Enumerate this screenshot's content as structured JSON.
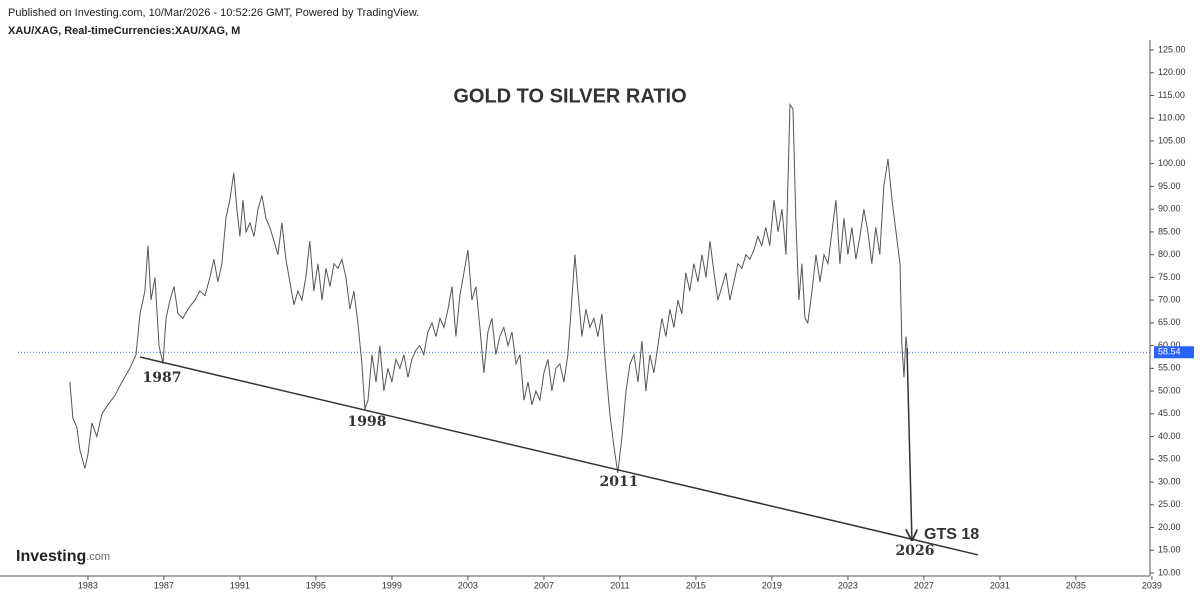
{
  "header": {
    "published": "Published on Investing.com, 10/Mar/2026 - 10:52:26 GMT, Powered by TradingView.",
    "symbol": "XAU/XAG, Real-timeCurrencies:XAU/XAG, M"
  },
  "logo": {
    "name": "Investing",
    "suffix": ".com"
  },
  "chart_data": {
    "type": "line",
    "title": "GOLD TO SILVER RATIO",
    "annotations": [
      "1987",
      "1998",
      "2011",
      "2026",
      "GTS 18"
    ],
    "trendline": {
      "x": [
        1985.74,
        2029.84
      ],
      "values": [
        57.5,
        14
      ]
    },
    "arrow": {
      "x": [
        2026.11,
        2026.37
      ],
      "values": [
        59.5,
        17.3
      ]
    },
    "last_value": 58.54,
    "series": [
      {
        "color": "#555555",
        "x": [
          1982.05,
          1982.21,
          1982.42,
          1982.58,
          1982.84,
          1983.0,
          1983.21,
          1983.47,
          1983.74,
          1984.05,
          1984.42,
          1984.79,
          1985.21,
          1985.53,
          1985.74,
          1986.0,
          1986.16,
          1986.32,
          1986.53,
          1986.74,
          1986.95,
          1987.11,
          1987.32,
          1987.53,
          1987.74,
          1988.0,
          1988.26,
          1988.63,
          1988.89,
          1989.16,
          1989.42,
          1989.63,
          1989.84,
          1990.05,
          1990.26,
          1990.47,
          1990.68,
          1990.84,
          1991.0,
          1991.16,
          1991.32,
          1991.53,
          1991.74,
          1991.95,
          1992.16,
          1992.37,
          1992.58,
          1992.79,
          1993.0,
          1993.21,
          1993.42,
          1993.63,
          1993.84,
          1994.05,
          1994.26,
          1994.47,
          1994.68,
          1994.89,
          1995.11,
          1995.32,
          1995.53,
          1995.74,
          1995.95,
          1996.16,
          1996.37,
          1996.58,
          1996.79,
          1997.0,
          1997.21,
          1997.42,
          1997.58,
          1997.74,
          1997.95,
          1998.16,
          1998.37,
          1998.58,
          1998.79,
          1999.0,
          1999.21,
          1999.42,
          1999.63,
          1999.84,
          2000.05,
          2000.26,
          2000.47,
          2000.68,
          2000.89,
          2001.11,
          2001.32,
          2001.53,
          2001.74,
          2001.95,
          2002.16,
          2002.37,
          2002.58,
          2002.79,
          2003.0,
          2003.21,
          2003.42,
          2003.63,
          2003.84,
          2004.05,
          2004.26,
          2004.47,
          2004.68,
          2004.89,
          2005.11,
          2005.32,
          2005.53,
          2005.74,
          2005.95,
          2006.16,
          2006.37,
          2006.58,
          2006.79,
          2007.0,
          2007.21,
          2007.42,
          2007.63,
          2007.84,
          2008.05,
          2008.26,
          2008.47,
          2008.63,
          2008.79,
          2009.0,
          2009.21,
          2009.42,
          2009.63,
          2009.84,
          2010.05,
          2010.26,
          2010.47,
          2010.68,
          2010.89,
          2011.11,
          2011.32,
          2011.53,
          2011.74,
          2011.95,
          2012.16,
          2012.37,
          2012.58,
          2012.79,
          2013.0,
          2013.21,
          2013.42,
          2013.63,
          2013.84,
          2014.05,
          2014.26,
          2014.47,
          2014.68,
          2014.89,
          2015.11,
          2015.32,
          2015.53,
          2015.74,
          2015.95,
          2016.16,
          2016.37,
          2016.58,
          2016.79,
          2017.0,
          2017.21,
          2017.42,
          2017.63,
          2017.84,
          2018.05,
          2018.26,
          2018.47,
          2018.68,
          2018.89,
          2019.11,
          2019.32,
          2019.53,
          2019.74,
          2019.95,
          2020.11,
          2020.26,
          2020.42,
          2020.58,
          2020.74,
          2020.89,
          2021.11,
          2021.32,
          2021.53,
          2021.74,
          2021.95,
          2022.16,
          2022.37,
          2022.58,
          2022.79,
          2023.0,
          2023.21,
          2023.42,
          2023.63,
          2023.84,
          2024.05,
          2024.26,
          2024.47,
          2024.68,
          2024.89,
          2025.11,
          2025.32,
          2025.53,
          2025.74,
          2025.84,
          2025.95,
          2026.05,
          2026.16
        ],
        "values": [
          52,
          44,
          42,
          37,
          33,
          36,
          43,
          40,
          45,
          47,
          49,
          52,
          55,
          58,
          67,
          72,
          82,
          70,
          75,
          60,
          56,
          66,
          70,
          73,
          67,
          66,
          68,
          70,
          72,
          71,
          75,
          79,
          74,
          78,
          88,
          92,
          98,
          90,
          84,
          92,
          85,
          87,
          84,
          90,
          93,
          88,
          86,
          83,
          80,
          87,
          79,
          74,
          69,
          72,
          70,
          75,
          83,
          72,
          78,
          70,
          77,
          73,
          78,
          77,
          79,
          75,
          68,
          72,
          65,
          56,
          46,
          48,
          58,
          52,
          60,
          50,
          55,
          52,
          57,
          55,
          58,
          53,
          57,
          59,
          60,
          58,
          63,
          65,
          62,
          66,
          64,
          68,
          73,
          62,
          71,
          76,
          81,
          70,
          73,
          64,
          54,
          63,
          66,
          58,
          62,
          64,
          60,
          63,
          56,
          58,
          48,
          52,
          47,
          50,
          48,
          54,
          57,
          50,
          55,
          56,
          52,
          58,
          70,
          80,
          72,
          62,
          68,
          64,
          66,
          62,
          67,
          55,
          45,
          38,
          32,
          40,
          50,
          56,
          58,
          52,
          61,
          50,
          58,
          54,
          60,
          66,
          62,
          68,
          64,
          70,
          67,
          76,
          72,
          78,
          74,
          80,
          75,
          83,
          76,
          70,
          73,
          76,
          70,
          74,
          78,
          77,
          80,
          79,
          81,
          84,
          82,
          86,
          82,
          92,
          85,
          90,
          80,
          113,
          112,
          88,
          70,
          78,
          66,
          65,
          72,
          80,
          74,
          80,
          78,
          85,
          92,
          78,
          88,
          80,
          86,
          79,
          84,
          90,
          85,
          78,
          86,
          80,
          95,
          101,
          92,
          85,
          78,
          60,
          53,
          62,
          58
        ]
      }
    ],
    "xlim": [
      1979.32,
      2038.9
    ],
    "xticks": [
      1983,
      1987,
      1991,
      1995,
      1999,
      2003,
      2007,
      2011,
      2015,
      2019,
      2023,
      2027,
      2031,
      2035,
      2039
    ],
    "ylim": [
      10,
      125
    ],
    "yticks": [
      {
        "value": 125,
        "label": "125.00"
      },
      {
        "value": 120,
        "label": "120.00"
      },
      {
        "value": 115,
        "label": "115.00"
      },
      {
        "value": 110,
        "label": "110.00"
      },
      {
        "value": 105,
        "label": "105.00"
      },
      {
        "value": 100,
        "label": "100.00"
      },
      {
        "value": 95,
        "label": "95.00"
      },
      {
        "value": 90,
        "label": "90.00"
      },
      {
        "value": 85,
        "label": "85.00"
      },
      {
        "value": 80,
        "label": "80.00"
      },
      {
        "value": 75,
        "label": "75.00"
      },
      {
        "value": 70,
        "label": "70.00"
      },
      {
        "value": 65,
        "label": "65.00"
      },
      {
        "value": 60,
        "label": "60.00"
      },
      {
        "value": 55,
        "label": "55.00"
      },
      {
        "value": 50,
        "label": "50.00"
      },
      {
        "value": 45,
        "label": "45.00"
      },
      {
        "value": 40,
        "label": "40.00"
      },
      {
        "value": 35,
        "label": "35.00"
      },
      {
        "value": 30,
        "label": "30.00"
      },
      {
        "value": 25,
        "label": "25.00"
      },
      {
        "value": 20,
        "label": "20.00"
      },
      {
        "value": 15,
        "label": "15.00"
      },
      {
        "value": 10,
        "label": "10.00"
      }
    ],
    "grid": false
  }
}
